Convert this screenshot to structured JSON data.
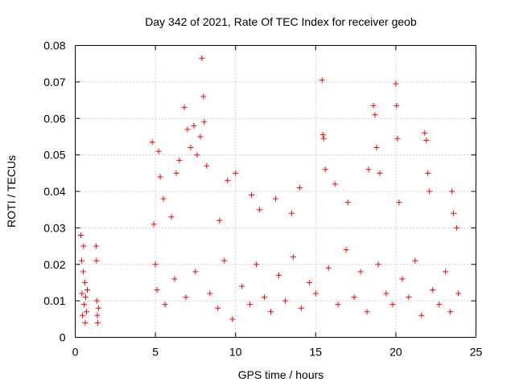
{
  "chart_data": {
    "type": "scatter",
    "title": "Day 342 of 2021, Rate Of TEC Index for receiver geob",
    "xlabel": "GPS time / hours",
    "ylabel": "ROTI / TECUs",
    "xlim": [
      0,
      25
    ],
    "ylim": [
      0,
      0.08
    ],
    "x_ticks": [
      0,
      5,
      10,
      15,
      20,
      25
    ],
    "x_tick_labels": [
      "0",
      "5",
      "10",
      "15",
      "20",
      "25"
    ],
    "y_ticks": [
      0,
      0.01,
      0.02,
      0.03,
      0.04,
      0.05,
      0.06,
      0.07,
      0.08
    ],
    "y_tick_labels": [
      "0",
      "0.01",
      "0.02",
      "0.03",
      "0.04",
      "0.05",
      "0.06",
      "0.07",
      "0.08"
    ],
    "grid": true,
    "legend": "none",
    "marker": "+",
    "color": "#ff0000",
    "series": [
      {
        "points": [
          [
            0.35,
            0.028
          ],
          [
            0.4,
            0.021
          ],
          [
            0.42,
            0.012
          ],
          [
            0.45,
            0.006
          ],
          [
            0.5,
            0.018
          ],
          [
            0.52,
            0.025
          ],
          [
            0.55,
            0.009
          ],
          [
            0.6,
            0.015
          ],
          [
            0.62,
            0.004
          ],
          [
            0.65,
            0.011
          ],
          [
            0.7,
            0.007
          ],
          [
            0.75,
            0.013
          ],
          [
            1.3,
            0.025
          ],
          [
            1.32,
            0.021
          ],
          [
            1.35,
            0.01
          ],
          [
            1.38,
            0.006
          ],
          [
            1.4,
            0.004
          ],
          [
            1.45,
            0.008
          ],
          [
            4.8,
            0.0535
          ],
          [
            4.9,
            0.031
          ],
          [
            5.0,
            0.02
          ],
          [
            5.2,
            0.051
          ],
          [
            5.3,
            0.044
          ],
          [
            5.5,
            0.038
          ],
          [
            6.3,
            0.045
          ],
          [
            6.5,
            0.0485
          ],
          [
            6.8,
            0.063
          ],
          [
            7.0,
            0.057
          ],
          [
            7.2,
            0.052
          ],
          [
            7.4,
            0.058
          ],
          [
            7.6,
            0.05
          ],
          [
            7.8,
            0.055
          ],
          [
            7.9,
            0.0765
          ],
          [
            8.0,
            0.066
          ],
          [
            8.05,
            0.059
          ],
          [
            8.2,
            0.047
          ],
          [
            9.5,
            0.043
          ],
          [
            10.0,
            0.045
          ],
          [
            11.0,
            0.039
          ],
          [
            12.5,
            0.038
          ],
          [
            14.0,
            0.041
          ],
          [
            15.4,
            0.0705
          ],
          [
            15.45,
            0.0555
          ],
          [
            15.5,
            0.0545
          ],
          [
            15.6,
            0.046
          ],
          [
            16.2,
            0.042
          ],
          [
            18.3,
            0.046
          ],
          [
            18.6,
            0.0635
          ],
          [
            18.7,
            0.061
          ],
          [
            18.8,
            0.052
          ],
          [
            19.0,
            0.045
          ],
          [
            20.0,
            0.0695
          ],
          [
            20.05,
            0.0635
          ],
          [
            20.1,
            0.0545
          ],
          [
            20.2,
            0.037
          ],
          [
            21.8,
            0.056
          ],
          [
            21.9,
            0.054
          ],
          [
            22.0,
            0.045
          ],
          [
            22.1,
            0.04
          ],
          [
            23.5,
            0.04
          ],
          [
            23.6,
            0.034
          ],
          [
            23.8,
            0.03
          ],
          [
            17.0,
            0.037
          ],
          [
            13.5,
            0.034
          ],
          [
            11.5,
            0.035
          ],
          [
            9.0,
            0.032
          ],
          [
            6.0,
            0.033
          ],
          [
            5.1,
            0.013
          ],
          [
            5.6,
            0.009
          ],
          [
            6.2,
            0.016
          ],
          [
            6.9,
            0.011
          ],
          [
            7.5,
            0.018
          ],
          [
            8.4,
            0.012
          ],
          [
            8.9,
            0.008
          ],
          [
            9.3,
            0.021
          ],
          [
            9.8,
            0.005
          ],
          [
            10.4,
            0.014
          ],
          [
            10.9,
            0.009
          ],
          [
            11.3,
            0.02
          ],
          [
            11.8,
            0.011
          ],
          [
            12.2,
            0.007
          ],
          [
            12.7,
            0.017
          ],
          [
            13.1,
            0.01
          ],
          [
            13.6,
            0.022
          ],
          [
            14.1,
            0.008
          ],
          [
            14.6,
            0.015
          ],
          [
            15.0,
            0.012
          ],
          [
            15.8,
            0.019
          ],
          [
            16.4,
            0.009
          ],
          [
            16.9,
            0.024
          ],
          [
            17.4,
            0.011
          ],
          [
            17.8,
            0.018
          ],
          [
            18.2,
            0.007
          ],
          [
            18.9,
            0.02
          ],
          [
            19.4,
            0.012
          ],
          [
            19.8,
            0.009
          ],
          [
            20.4,
            0.016
          ],
          [
            20.8,
            0.011
          ],
          [
            21.2,
            0.021
          ],
          [
            21.6,
            0.006
          ],
          [
            22.3,
            0.013
          ],
          [
            22.7,
            0.009
          ],
          [
            23.1,
            0.018
          ],
          [
            23.4,
            0.007
          ],
          [
            23.9,
            0.012
          ]
        ]
      }
    ]
  }
}
